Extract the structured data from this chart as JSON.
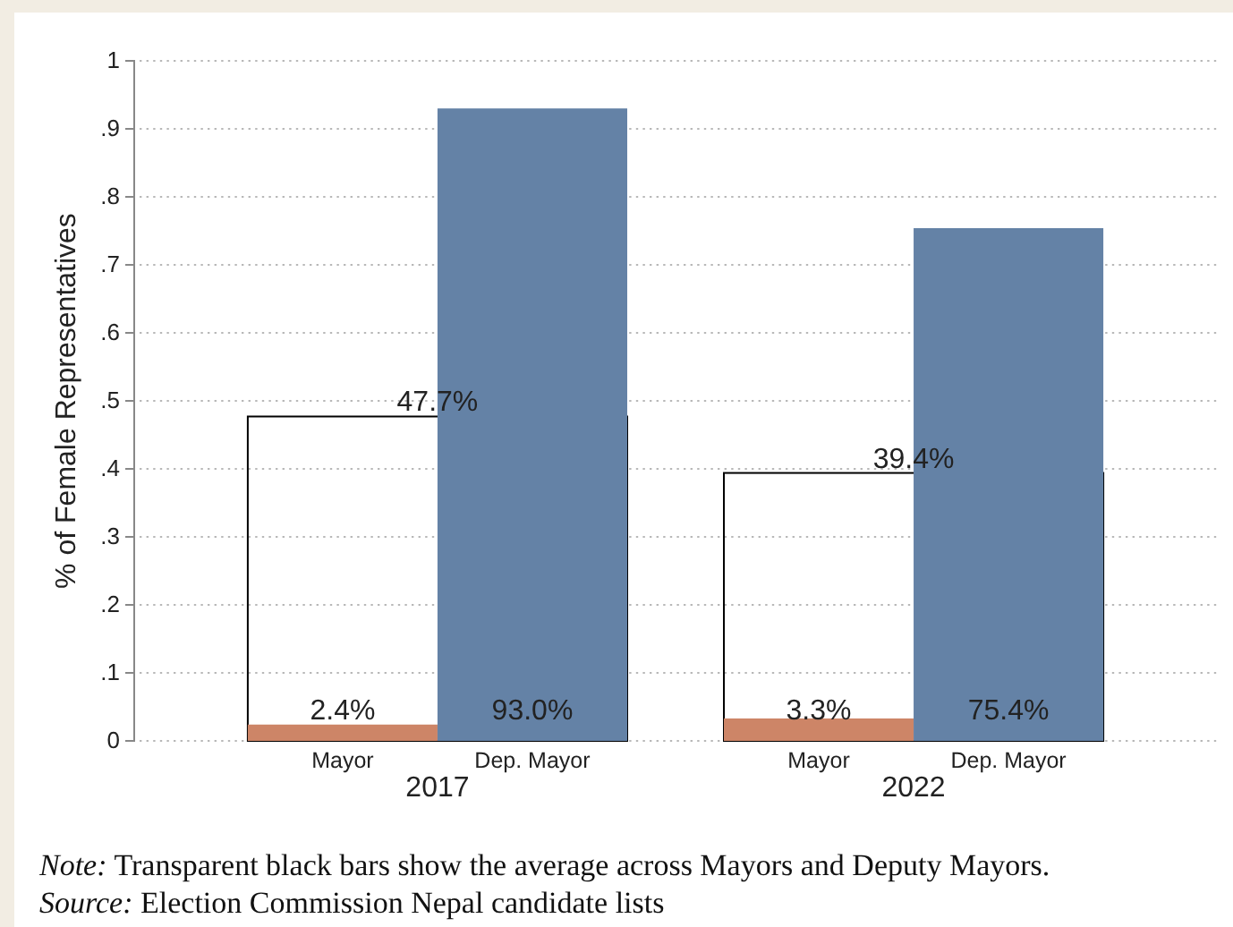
{
  "chart_data": {
    "type": "bar",
    "categories": [
      "2017",
      "2022"
    ],
    "series": [
      {
        "color": "#000000",
        "values": [
          0.477,
          0.394
        ],
        "value_labels": [
          "47.7%",
          "39.4%"
        ]
      },
      {
        "name": "Mayor",
        "color": "#cd8567",
        "values": [
          0.024,
          0.033
        ],
        "value_labels": [
          "2.4%",
          "3.3%"
        ]
      },
      {
        "name": "Dep. Mayor",
        "color": "#6482a6",
        "values": [
          0.93,
          0.754
        ],
        "value_labels": [
          "93.0%",
          "75.4%"
        ]
      }
    ],
    "ylabel": "% of Female Representatives",
    "ylim": [
      0,
      1
    ],
    "yticks": [
      0,
      {
        "value": 0.1,
        "label": ".1"
      },
      {
        "value": 0.2,
        "label": ".2"
      },
      {
        "value": 0.3,
        "label": ".3"
      },
      {
        "value": 0.4,
        "label": ".4"
      },
      {
        "value": 0.5,
        "label": ".5"
      },
      {
        "value": 0.6,
        "label": ".6"
      },
      {
        "value": 0.7,
        "label": ".7"
      },
      {
        "value": 0.8,
        "label": ".8"
      },
      {
        "value": 0.9,
        "label": ".9"
      },
      1
    ],
    "grid": "y",
    "annotations": [
      "Note: Transparent black bars show the average across Mayors and Deputy Mayors.",
      "Source: Election Commission Nepal candidate lists"
    ]
  }
}
